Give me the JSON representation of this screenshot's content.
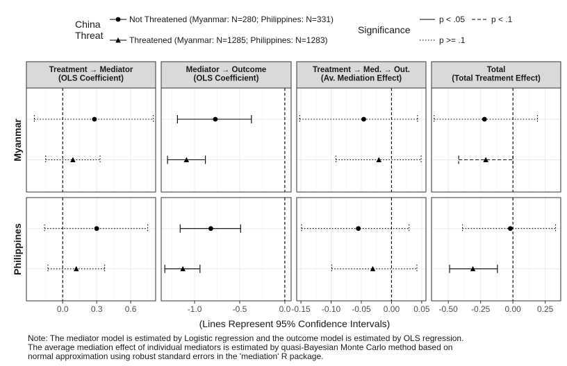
{
  "legend": {
    "group_title": [
      "China",
      "Threat"
    ],
    "groups": [
      {
        "key": "not_threatened",
        "shape": "circle",
        "label": "Not Threatened (Myanmar: N=280; Philippines: N=331)"
      },
      {
        "key": "threatened",
        "shape": "triangle",
        "label": "Threatened (Myanmar: N=1285; Philippines: N=1283)"
      }
    ],
    "significance_title": "Significance",
    "significance": [
      {
        "key": "p05",
        "dash": "solid",
        "label": "p < .05"
      },
      {
        "key": "p1",
        "dash": "dashed",
        "label": "p < .1"
      },
      {
        "key": "pn",
        "dash": "dotted",
        "label": "p >= .1"
      }
    ]
  },
  "chart_data": {
    "type": "scatter",
    "subtype": "coefficient-plot-with-confidence-intervals",
    "grid": true,
    "xlabel": "(Lines Represent 95% Confidence Intervals)",
    "row_labels": [
      "Myanmar",
      "Philippines"
    ],
    "panels": [
      {
        "title": [
          "Treatment → Mediator",
          "(OLS Coefficient)"
        ],
        "xlim": [
          -0.32,
          0.82
        ],
        "ticks": [
          0,
          0.3,
          0.6
        ],
        "tick_labels": [
          "0.0",
          "0.3",
          "0.6"
        ],
        "ref_line": 0,
        "rows": [
          {
            "country": "Myanmar",
            "series": [
              {
                "group": "not_threatened",
                "estimate": 0.28,
                "lower": -0.25,
                "upper": 0.8,
                "significance": "pn"
              },
              {
                "group": "threatened",
                "estimate": 0.09,
                "lower": -0.15,
                "upper": 0.33,
                "significance": "pn"
              }
            ]
          },
          {
            "country": "Philippines",
            "series": [
              {
                "group": "not_threatened",
                "estimate": 0.3,
                "lower": -0.16,
                "upper": 0.75,
                "significance": "pn"
              },
              {
                "group": "threatened",
                "estimate": 0.12,
                "lower": -0.13,
                "upper": 0.37,
                "significance": "pn"
              }
            ]
          }
        ]
      },
      {
        "title": [
          "Mediator → Outcome",
          "(OLS Coefficient)"
        ],
        "xlim": [
          -1.37,
          0.07
        ],
        "ticks": [
          -1.0,
          -0.5,
          0.0
        ],
        "tick_labels": [
          "-1.0",
          "-0.5",
          "0.0"
        ],
        "ref_line": 0,
        "rows": [
          {
            "country": "Myanmar",
            "series": [
              {
                "group": "not_threatened",
                "estimate": -0.77,
                "lower": -1.19,
                "upper": -0.37,
                "significance": "p05"
              },
              {
                "group": "threatened",
                "estimate": -1.09,
                "lower": -1.3,
                "upper": -0.88,
                "significance": "p05"
              }
            ]
          },
          {
            "country": "Philippines",
            "series": [
              {
                "group": "not_threatened",
                "estimate": -0.82,
                "lower": -1.16,
                "upper": -0.49,
                "significance": "p05"
              },
              {
                "group": "threatened",
                "estimate": -1.13,
                "lower": -1.33,
                "upper": -0.94,
                "significance": "p05"
              }
            ]
          }
        ]
      },
      {
        "title": [
          "Treatment → Med. → Out.",
          "(Av. Mediation Effect)"
        ],
        "xlim": [
          -0.157,
          0.057
        ],
        "ticks": [
          -0.15,
          -0.1,
          -0.05,
          0.0,
          0.05
        ],
        "tick_labels": [
          "-0.15",
          "-0.10",
          "-0.05",
          "0.00",
          "0.05"
        ],
        "ref_line": 0,
        "rows": [
          {
            "country": "Myanmar",
            "series": [
              {
                "group": "not_threatened",
                "estimate": -0.046,
                "lower": -0.152,
                "upper": 0.043,
                "significance": "pn"
              },
              {
                "group": "threatened",
                "estimate": -0.021,
                "lower": -0.092,
                "upper": 0.049,
                "significance": "pn"
              }
            ]
          },
          {
            "country": "Philippines",
            "series": [
              {
                "group": "not_threatened",
                "estimate": -0.055,
                "lower": -0.149,
                "upper": 0.029,
                "significance": "pn"
              },
              {
                "group": "threatened",
                "estimate": -0.031,
                "lower": -0.099,
                "upper": 0.042,
                "significance": "pn"
              }
            ]
          }
        ]
      },
      {
        "title": [
          "Total",
          "(Total Treatment Effect)"
        ],
        "xlim": [
          -0.63,
          0.37
        ],
        "ticks": [
          -0.5,
          -0.25,
          0.0,
          0.25
        ],
        "tick_labels": [
          "-0.50",
          "-0.25",
          "0.00",
          "0.25"
        ],
        "ref_line": 0,
        "rows": [
          {
            "country": "Myanmar",
            "series": [
              {
                "group": "not_threatened",
                "estimate": -0.22,
                "lower": -0.61,
                "upper": 0.19,
                "significance": "pn"
              },
              {
                "group": "threatened",
                "estimate": -0.21,
                "lower": -0.42,
                "upper": 0.0,
                "significance": "p1"
              }
            ]
          },
          {
            "country": "Philippines",
            "series": [
              {
                "group": "not_threatened",
                "estimate": -0.02,
                "lower": -0.39,
                "upper": 0.33,
                "significance": "pn"
              },
              {
                "group": "threatened",
                "estimate": -0.31,
                "lower": -0.49,
                "upper": -0.12,
                "significance": "p05"
              }
            ]
          }
        ]
      }
    ]
  },
  "note": [
    "Note: The mediator model is estimated by Logistic regression and the outcome model is estimated by OLS regression.",
    "The average mediation effect of individual mediators is estimated by quasi-Bayesian Monte Carlo method based on",
    "normal approximation using robust standard errors in the 'mediation' R package."
  ]
}
